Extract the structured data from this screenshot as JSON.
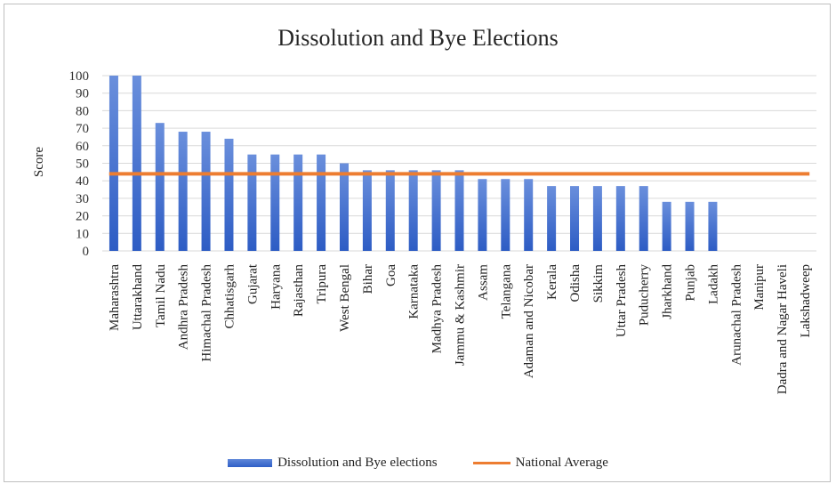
{
  "chart_data": {
    "type": "bar",
    "title": "Dissolution and Bye Elections",
    "ylabel": "Score",
    "xlabel": "",
    "ylim": [
      0,
      100
    ],
    "yticks": [
      0,
      10,
      20,
      30,
      40,
      50,
      60,
      70,
      80,
      90,
      100
    ],
    "grid": true,
    "legend_position": "bottom",
    "categories": [
      "Maharashtra",
      "Uttarakhand",
      "Tamil Nadu",
      "Andhra Pradesh",
      "Himachal Pradesh",
      "Chhatisgarh",
      "Gujarat",
      "Haryana",
      "Rajasthan",
      "Tripura",
      "West Bengal",
      "Bihar",
      "Goa",
      "Karnataka",
      "Madhya Pradesh",
      "Jammu & Kashmir",
      "Assam",
      "Telangana",
      "Adaman and Nicobar",
      "Kerala",
      "Odisha",
      "Sikkim",
      "Uttar Pradesh",
      "Puducherry",
      "Jharkhand",
      "Punjab",
      "Ladakh",
      "Arunachal Pradesh",
      "Manipur",
      "Dadra and Nagar Haveli",
      "Lakshadweep"
    ],
    "series": [
      {
        "name": "Dissolution and Bye elections",
        "type": "bar",
        "color": "#4472c4",
        "values": [
          100,
          100,
          73,
          68,
          68,
          64,
          55,
          55,
          55,
          55,
          50,
          46,
          46,
          46,
          46,
          46,
          41,
          41,
          41,
          37,
          37,
          37,
          37,
          37,
          28,
          28,
          28,
          0,
          0,
          0,
          0
        ]
      },
      {
        "name": "National Average",
        "type": "line",
        "color": "#ed7d31",
        "values": [
          44,
          44,
          44,
          44,
          44,
          44,
          44,
          44,
          44,
          44,
          44,
          44,
          44,
          44,
          44,
          44,
          44,
          44,
          44,
          44,
          44,
          44,
          44,
          44,
          44,
          44,
          44,
          44,
          44,
          44,
          44
        ]
      }
    ]
  }
}
